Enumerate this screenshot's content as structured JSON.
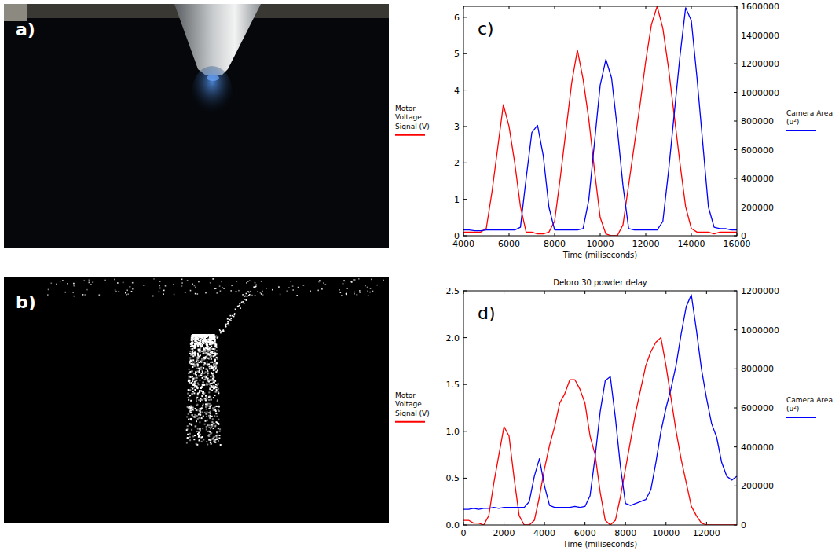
{
  "images": [
    {
      "label": "a)"
    },
    {
      "label": "b)"
    }
  ],
  "chart_data": [
    {
      "type": "line",
      "panel": "c)",
      "xlabel": "Time (miliseconds)",
      "ylabel": "Motor Voltage Signal (V)",
      "y2label": "Camera Area (u²)",
      "grid": false,
      "xlim": [
        4000,
        16000
      ],
      "xticks": [
        4000,
        6000,
        8000,
        10000,
        12000,
        14000,
        16000
      ],
      "ylim": [
        0,
        6.3
      ],
      "yticks": [
        0,
        1,
        2,
        3,
        4,
        5,
        6
      ],
      "y2lim": [
        0,
        1600000
      ],
      "y2ticks": [
        0,
        200000,
        400000,
        600000,
        800000,
        1000000,
        1200000,
        1400000,
        1600000
      ],
      "x": [
        4000,
        4250,
        4500,
        4750,
        5000,
        5250,
        5500,
        5750,
        6000,
        6250,
        6500,
        6750,
        7000,
        7250,
        7500,
        7750,
        8000,
        8250,
        8500,
        8750,
        9000,
        9250,
        9500,
        9750,
        10000,
        10250,
        10500,
        10750,
        11000,
        11250,
        11500,
        11750,
        12000,
        12250,
        12500,
        12750,
        13000,
        13250,
        13500,
        13750,
        14000,
        14250,
        14500,
        14750,
        15000,
        15250,
        15500,
        15750,
        16000
      ],
      "series": [
        {
          "color": "#ff0000",
          "values": [
            0.1,
            0.1,
            0.1,
            0.1,
            0.2,
            1.2,
            2.4,
            3.6,
            3.0,
            2.0,
            0.8,
            0.1,
            0.1,
            0.05,
            0.05,
            0.1,
            0.4,
            1.6,
            2.9,
            4.2,
            5.1,
            4.3,
            3.2,
            1.8,
            0.5,
            0.05,
            0.0,
            0.0,
            0.3,
            1.4,
            2.5,
            3.6,
            4.8,
            5.8,
            6.3,
            5.7,
            4.6,
            3.3,
            2.0,
            0.8,
            0.2,
            0.1,
            0.1,
            0.1,
            0.05,
            0.1,
            0.1,
            0.1,
            0.1
          ]
        },
        {
          "color": "#0000ff",
          "axis": "y2",
          "values": [
            40000,
            40000,
            35000,
            35000,
            40000,
            40000,
            40000,
            40000,
            40000,
            40000,
            60000,
            400000,
            720000,
            770000,
            560000,
            200000,
            40000,
            40000,
            40000,
            40000,
            40000,
            50000,
            250000,
            650000,
            1050000,
            1230000,
            1100000,
            750000,
            350000,
            50000,
            40000,
            40000,
            40000,
            40000,
            40000,
            100000,
            450000,
            850000,
            1250000,
            1590000,
            1500000,
            1100000,
            650000,
            200000,
            60000,
            50000,
            50000,
            40000,
            40000
          ]
        }
      ]
    },
    {
      "type": "line",
      "panel": "d)",
      "title": "Deloro 30 powder delay",
      "xlabel": "Time (miliseconds)",
      "ylabel": "Motor Voltage Signal (V)",
      "y2label": "Camera Area (u²)",
      "grid": false,
      "xlim": [
        0,
        13500
      ],
      "xticks": [
        0,
        2000,
        4000,
        6000,
        8000,
        10000,
        12000
      ],
      "ylim": [
        0,
        2.5
      ],
      "yticks": [
        {
          "value": 0,
          "label": "0.0"
        },
        {
          "value": 0.5,
          "label": "0.5"
        },
        {
          "value": 1,
          "label": "1.0"
        },
        {
          "value": 1.5,
          "label": "1.5"
        },
        {
          "value": 2,
          "label": "2.0"
        },
        {
          "value": 2.5,
          "label": "2.5"
        }
      ],
      "y2lim": [
        0,
        1200000
      ],
      "y2ticks": [
        0,
        200000,
        400000,
        600000,
        800000,
        1000000,
        1200000
      ],
      "x": [
        0,
        250,
        500,
        750,
        1000,
        1250,
        1500,
        1750,
        2000,
        2250,
        2500,
        2750,
        3000,
        3250,
        3500,
        3750,
        4000,
        4250,
        4500,
        4750,
        5000,
        5250,
        5500,
        5750,
        6000,
        6250,
        6500,
        6750,
        7000,
        7250,
        7500,
        7750,
        8000,
        8250,
        8500,
        8750,
        9000,
        9250,
        9500,
        9750,
        10000,
        10250,
        10500,
        10750,
        11000,
        11250,
        11500,
        11750,
        12000,
        12250,
        12500,
        12750,
        13000,
        13250,
        13500
      ],
      "series": [
        {
          "color": "#ff0000",
          "values": [
            0.05,
            0.05,
            0.02,
            0.02,
            0.0,
            0.1,
            0.45,
            0.75,
            1.05,
            0.95,
            0.5,
            0.1,
            0.0,
            0.0,
            0.05,
            0.3,
            0.6,
            0.85,
            1.05,
            1.3,
            1.4,
            1.55,
            1.55,
            1.45,
            1.3,
            0.95,
            0.75,
            0.35,
            0.05,
            0.0,
            0.05,
            0.3,
            0.6,
            0.9,
            1.2,
            1.45,
            1.7,
            1.85,
            1.95,
            2.0,
            1.7,
            1.35,
            1.0,
            0.7,
            0.45,
            0.2,
            0.1,
            0.02,
            0.0,
            0.0,
            0.0,
            0.0,
            0.0,
            0.0,
            0.0
          ]
        },
        {
          "color": "#0000ff",
          "axis": "y2",
          "values": [
            80000,
            80000,
            85000,
            80000,
            85000,
            85000,
            90000,
            85000,
            90000,
            90000,
            90000,
            90000,
            90000,
            120000,
            250000,
            340000,
            200000,
            100000,
            90000,
            90000,
            90000,
            90000,
            95000,
            90000,
            95000,
            150000,
            350000,
            580000,
            740000,
            760000,
            550000,
            300000,
            110000,
            100000,
            110000,
            120000,
            130000,
            180000,
            320000,
            480000,
            600000,
            700000,
            820000,
            980000,
            1120000,
            1180000,
            1000000,
            800000,
            650000,
            520000,
            450000,
            320000,
            250000,
            230000,
            250000
          ]
        }
      ]
    }
  ]
}
